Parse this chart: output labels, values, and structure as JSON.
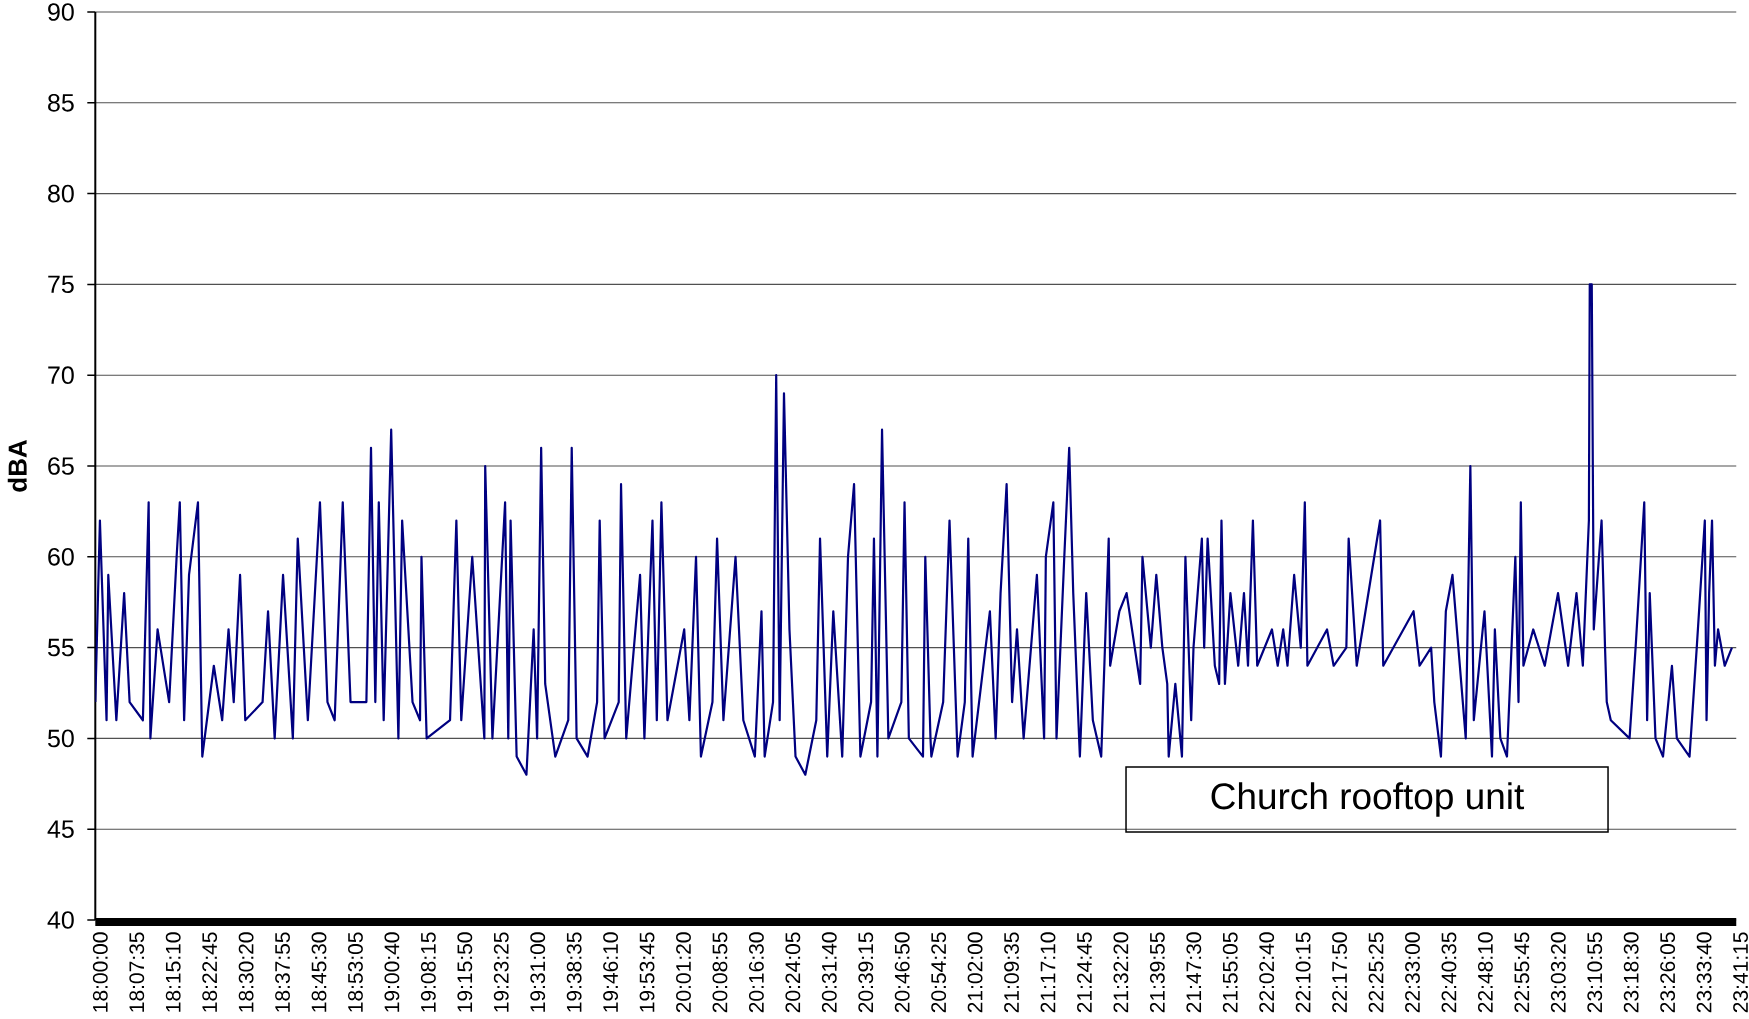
{
  "chart_data": {
    "type": "line",
    "ylabel": "dBA",
    "x": [
      18.0,
      18.016,
      18.039,
      18.045,
      18.073,
      18.1,
      18.119,
      18.165,
      18.185,
      18.191,
      18.216,
      18.256,
      18.282,
      18.293,
      18.308,
      18.325,
      18.356,
      18.371,
      18.411,
      18.44,
      18.462,
      18.48,
      18.502,
      18.52,
      18.58,
      18.599,
      18.622,
      18.651,
      18.685,
      18.702,
      18.737,
      18.779,
      18.805,
      18.83,
      18.858,
      18.885,
      18.94,
      18.956,
      18.971,
      18.983,
      19.0,
      19.026,
      19.051,
      19.064,
      19.1,
      19.126,
      19.131,
      19.149,
      19.23,
      19.252,
      19.269,
      19.307,
      19.349,
      19.352,
      19.377,
      19.421,
      19.432,
      19.44,
      19.461,
      19.495,
      19.52,
      19.532,
      19.546,
      19.56,
      19.595,
      19.64,
      19.652,
      19.669,
      19.707,
      19.74,
      19.749,
      19.766,
      19.815,
      19.823,
      19.841,
      19.889,
      19.904,
      19.932,
      19.947,
      19.963,
      19.984,
      20.042,
      20.06,
      20.083,
      20.1,
      20.14,
      20.156,
      20.178,
      20.22,
      20.247,
      20.287,
      20.31,
      20.321,
      20.35,
      20.361,
      20.373,
      20.388,
      20.407,
      20.428,
      20.462,
      20.5,
      20.513,
      20.538,
      20.559,
      20.59,
      20.61,
      20.631,
      20.653,
      20.69,
      20.7,
      20.712,
      20.728,
      20.75,
      20.795,
      20.806,
      20.821,
      20.87,
      20.878,
      20.896,
      20.899,
      20.94,
      20.962,
      20.99,
      21.015,
      21.027,
      21.042,
      21.102,
      21.122,
      21.139,
      21.16,
      21.179,
      21.196,
      21.219,
      21.265,
      21.29,
      21.296,
      21.322,
      21.333,
      21.36,
      21.377,
      21.391,
      21.414,
      21.436,
      21.459,
      21.488,
      21.514,
      21.519,
      21.551,
      21.576,
      21.623,
      21.631,
      21.66,
      21.679,
      21.7,
      21.717,
      21.722,
      21.745,
      21.768,
      21.78,
      21.8,
      21.808,
      21.837,
      21.845,
      21.857,
      21.882,
      21.897,
      21.905,
      21.917,
      21.936,
      21.963,
      21.983,
      21.997,
      22.014,
      22.029,
      22.08,
      22.1,
      22.119,
      22.134,
      22.157,
      22.18,
      22.194,
      22.203,
      22.271,
      22.294,
      22.338,
      22.346,
      22.374,
      22.455,
      22.466,
      22.571,
      22.592,
      22.632,
      22.643,
      22.666,
      22.683,
      22.706,
      22.752,
      22.768,
      22.78,
      22.817,
      22.843,
      22.853,
      22.872,
      22.895,
      22.924,
      22.935,
      22.943,
      22.952,
      22.986,
      23.026,
      23.072,
      23.107,
      23.136,
      23.158,
      23.179,
      23.182,
      23.189,
      23.196,
      23.223,
      23.235,
      23.241,
      23.255,
      23.32,
      23.341,
      23.371,
      23.381,
      23.39,
      23.41,
      23.436,
      23.467,
      23.484,
      23.528,
      23.553,
      23.581,
      23.587,
      23.596,
      23.606,
      23.616,
      23.627,
      23.65,
      23.675
    ],
    "series": [
      {
        "color": "#000080",
        "values": [
          52,
          62,
          51,
          59,
          51,
          58,
          52,
          51,
          63,
          50,
          56,
          52,
          60,
          63,
          51,
          59,
          63,
          49,
          54,
          51,
          56,
          52,
          59,
          51,
          52,
          57,
          50,
          59,
          50,
          61,
          51,
          63,
          52,
          51,
          63,
          52,
          52,
          66,
          52,
          63,
          51,
          67,
          50,
          62,
          52,
          51,
          60,
          50,
          51,
          62,
          51,
          60,
          50,
          65,
          50,
          63,
          50,
          62,
          49,
          48,
          56,
          50,
          66,
          53,
          49,
          51,
          66,
          50,
          49,
          52,
          62,
          50,
          52,
          64,
          50,
          59,
          50,
          62,
          51,
          63,
          51,
          56,
          51,
          60,
          49,
          52,
          61,
          51,
          60,
          51,
          49,
          57,
          49,
          52,
          70,
          51,
          69,
          56,
          49,
          48,
          51,
          61,
          49,
          57,
          49,
          60,
          64,
          49,
          52,
          61,
          49,
          67,
          50,
          52,
          63,
          50,
          49,
          60,
          50,
          49,
          52,
          62,
          49,
          52,
          61,
          49,
          57,
          50,
          58,
          64,
          52,
          56,
          50,
          59,
          50,
          60,
          63,
          50,
          60,
          66,
          58,
          49,
          58,
          51,
          49,
          61,
          54,
          57,
          58,
          53,
          60,
          55,
          59,
          55,
          53,
          49,
          53,
          49,
          60,
          51,
          55,
          61,
          55,
          61,
          54,
          53,
          62,
          53,
          58,
          54,
          58,
          54,
          62,
          54,
          56,
          54,
          56,
          54,
          59,
          55,
          63,
          54,
          56,
          54,
          55,
          61,
          54,
          62,
          54,
          57,
          54,
          55,
          52,
          49,
          57,
          59,
          50,
          65,
          51,
          57,
          49,
          56,
          50,
          49,
          60,
          52,
          63,
          54,
          56,
          54,
          58,
          54,
          58,
          54,
          62,
          75,
          75,
          56,
          62,
          55,
          52,
          51,
          50,
          55,
          63,
          51,
          58,
          50,
          49,
          54,
          50,
          49,
          55,
          62,
          51,
          58,
          62,
          54,
          56,
          54,
          55
        ]
      }
    ],
    "xlim": [
      18,
      23.69
    ],
    "ylim": [
      40,
      90
    ],
    "xticks": [
      {
        "value": 18,
        "label": "18:00:00"
      },
      {
        "value": 18.1264,
        "label": "18:07:35"
      },
      {
        "value": 18.2528,
        "label": "18:15:10"
      },
      {
        "value": 18.3792,
        "label": "18:22:45"
      },
      {
        "value": 18.5056,
        "label": "18:30:20"
      },
      {
        "value": 18.6319,
        "label": "18:37:55"
      },
      {
        "value": 18.7583,
        "label": "18:45:30"
      },
      {
        "value": 18.8847,
        "label": "18:53:05"
      },
      {
        "value": 19.0111,
        "label": "19:00:40"
      },
      {
        "value": 19.1375,
        "label": "19:08:15"
      },
      {
        "value": 19.2639,
        "label": "19:15:50"
      },
      {
        "value": 19.3903,
        "label": "19:23:25"
      },
      {
        "value": 19.5167,
        "label": "19:31:00"
      },
      {
        "value": 19.6431,
        "label": "19:38:35"
      },
      {
        "value": 19.7694,
        "label": "19:46:10"
      },
      {
        "value": 19.8958,
        "label": "19:53:45"
      },
      {
        "value": 20.0222,
        "label": "20:01:20"
      },
      {
        "value": 20.1486,
        "label": "20:08:55"
      },
      {
        "value": 20.275,
        "label": "20:16:30"
      },
      {
        "value": 20.4014,
        "label": "20:24:05"
      },
      {
        "value": 20.5278,
        "label": "20:31:40"
      },
      {
        "value": 20.6542,
        "label": "20:39:15"
      },
      {
        "value": 20.7806,
        "label": "20:46:50"
      },
      {
        "value": 20.9069,
        "label": "20:54:25"
      },
      {
        "value": 21.0333,
        "label": "21:02:00"
      },
      {
        "value": 21.1597,
        "label": "21:09:35"
      },
      {
        "value": 21.2861,
        "label": "21:17:10"
      },
      {
        "value": 21.4125,
        "label": "21:24:45"
      },
      {
        "value": 21.5389,
        "label": "21:32:20"
      },
      {
        "value": 21.6653,
        "label": "21:39:55"
      },
      {
        "value": 21.7917,
        "label": "21:47:30"
      },
      {
        "value": 21.9181,
        "label": "21:55:05"
      },
      {
        "value": 22.0444,
        "label": "22:02:40"
      },
      {
        "value": 22.1708,
        "label": "22:10:15"
      },
      {
        "value": 22.2972,
        "label": "22:17:50"
      },
      {
        "value": 22.4236,
        "label": "22:25:25"
      },
      {
        "value": 22.55,
        "label": "22:33:00"
      },
      {
        "value": 22.6764,
        "label": "22:40:35"
      },
      {
        "value": 22.8028,
        "label": "22:48:10"
      },
      {
        "value": 22.9292,
        "label": "22:55:45"
      },
      {
        "value": 23.0556,
        "label": "23:03:20"
      },
      {
        "value": 23.1819,
        "label": "23:10:55"
      },
      {
        "value": 23.3083,
        "label": "23:18:30"
      },
      {
        "value": 23.4347,
        "label": "23:26:05"
      },
      {
        "value": 23.5611,
        "label": "23:33:40"
      },
      {
        "value": 23.6875,
        "label": "23:41:15"
      }
    ],
    "yticks": [
      40,
      45,
      50,
      55,
      60,
      65,
      70,
      75,
      80,
      85,
      90
    ],
    "grid": "y",
    "annotations": [
      "Church rooftop unit"
    ]
  }
}
